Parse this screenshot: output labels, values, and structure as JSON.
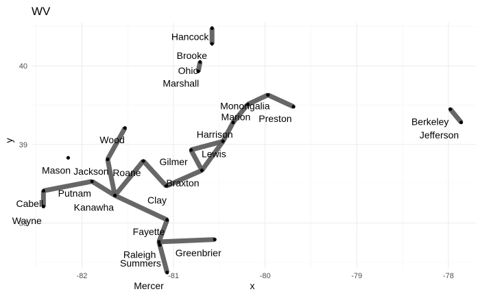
{
  "chart_data": {
    "type": "network",
    "title": "WV",
    "xlabel": "x",
    "ylabel": "y",
    "xlim": [
      -82.55,
      -77.7
    ],
    "ylim": [
      37.42,
      40.55
    ],
    "x_ticks": [
      -82,
      -81,
      -80,
      -79,
      -78
    ],
    "y_ticks": [
      38,
      39,
      40
    ],
    "grid": true,
    "nodes": [
      {
        "name": "Hancock",
        "x": -80.58,
        "y": 40.48
      },
      {
        "name": "Brooke",
        "x": -80.71,
        "y": 40.05
      },
      {
        "name": "Ohio",
        "x": -80.73,
        "y": 39.93
      },
      {
        "name": "Marshall",
        "x": -80.58,
        "y": 40.28
      },
      {
        "name": "Monongalia",
        "x": -79.97,
        "y": 39.63
      },
      {
        "name": "Marion",
        "x": -80.19,
        "y": 39.51
      },
      {
        "name": "Preston",
        "x": -79.69,
        "y": 39.48
      },
      {
        "name": "Harrison",
        "x": -80.35,
        "y": 39.28
      },
      {
        "name": "Lewis",
        "x": -80.46,
        "y": 39.04
      },
      {
        "name": "Gilmer",
        "x": -80.81,
        "y": 38.93
      },
      {
        "name": "Braxton",
        "x": -80.69,
        "y": 38.67
      },
      {
        "name": "Clay",
        "x": -81.08,
        "y": 38.47
      },
      {
        "name": "Roane",
        "x": -81.33,
        "y": 38.79
      },
      {
        "name": "Wood",
        "x": -81.53,
        "y": 39.21
      },
      {
        "name": "Jackson",
        "x": -81.72,
        "y": 38.81
      },
      {
        "name": "Kanawha",
        "x": -81.64,
        "y": 38.35
      },
      {
        "name": "Mason",
        "x": -82.15,
        "y": 38.83
      },
      {
        "name": "Putnam",
        "x": -81.89,
        "y": 38.53
      },
      {
        "name": "Cabell",
        "x": -82.42,
        "y": 38.41
      },
      {
        "name": "Wayne",
        "x": -82.42,
        "y": 38.21
      },
      {
        "name": "Fayette",
        "x": -81.07,
        "y": 38.04
      },
      {
        "name": "Raleigh",
        "x": -81.16,
        "y": 37.76
      },
      {
        "name": "Summers",
        "x": -81.15,
        "y": 37.72
      },
      {
        "name": "Greenbrier",
        "x": -80.55,
        "y": 37.79
      },
      {
        "name": "Mercer",
        "x": -81.07,
        "y": 37.37
      },
      {
        "name": "Berkeley",
        "x": -77.98,
        "y": 39.45
      },
      {
        "name": "Jefferson",
        "x": -77.86,
        "y": 39.28
      }
    ],
    "edges": [
      [
        "Hancock",
        "Marshall"
      ],
      [
        "Brooke",
        "Ohio"
      ],
      [
        "Preston",
        "Monongalia"
      ],
      [
        "Monongalia",
        "Marion"
      ],
      [
        "Marion",
        "Harrison"
      ],
      [
        "Harrison",
        "Lewis"
      ],
      [
        "Lewis",
        "Braxton"
      ],
      [
        "Gilmer",
        "Lewis"
      ],
      [
        "Gilmer",
        "Braxton"
      ],
      [
        "Braxton",
        "Clay"
      ],
      [
        "Clay",
        "Roane"
      ],
      [
        "Roane",
        "Kanawha"
      ],
      [
        "Wood",
        "Jackson"
      ],
      [
        "Jackson",
        "Kanawha"
      ],
      [
        "Kanawha",
        "Putnam"
      ],
      [
        "Putnam",
        "Cabell"
      ],
      [
        "Cabell",
        "Wayne"
      ],
      [
        "Kanawha",
        "Fayette"
      ],
      [
        "Fayette",
        "Raleigh"
      ],
      [
        "Raleigh",
        "Summers"
      ],
      [
        "Summers",
        "Mercer"
      ],
      [
        "Raleigh",
        "Greenbrier"
      ],
      [
        "Berkeley",
        "Jefferson"
      ]
    ],
    "labels": [
      {
        "text": "Hancock",
        "x": -80.82,
        "y": 40.37
      },
      {
        "text": "Brooke",
        "x": -80.8,
        "y": 40.13
      },
      {
        "text": "Ohio",
        "x": -80.84,
        "y": 39.94
      },
      {
        "text": "Marshall",
        "x": -80.92,
        "y": 39.78
      },
      {
        "text": "Monongalia",
        "x": -80.22,
        "y": 39.49
      },
      {
        "text": "Marion",
        "x": -80.32,
        "y": 39.35
      },
      {
        "text": "Preston",
        "x": -79.89,
        "y": 39.33
      },
      {
        "text": "Harrison",
        "x": -80.55,
        "y": 39.13
      },
      {
        "text": "Lewis",
        "x": -80.56,
        "y": 38.88
      },
      {
        "text": "Gilmer",
        "x": -81.0,
        "y": 38.78
      },
      {
        "text": "Braxton",
        "x": -80.9,
        "y": 38.51
      },
      {
        "text": "Clay",
        "x": -81.18,
        "y": 38.29
      },
      {
        "text": "Roane",
        "x": -81.51,
        "y": 38.64
      },
      {
        "text": "Wood",
        "x": -81.67,
        "y": 39.06
      },
      {
        "text": "Jackson",
        "x": -81.9,
        "y": 38.66
      },
      {
        "text": "Kanawha",
        "x": -81.87,
        "y": 38.2
      },
      {
        "text": "Mason",
        "x": -82.28,
        "y": 38.67
      },
      {
        "text": "Putnam",
        "x": -82.08,
        "y": 38.38
      },
      {
        "text": "Cabell",
        "x": -82.57,
        "y": 38.25
      },
      {
        "text": "Wayne",
        "x": -82.6,
        "y": 38.03
      },
      {
        "text": "Fayette",
        "x": -81.27,
        "y": 37.89
      },
      {
        "text": "Raleigh",
        "x": -81.37,
        "y": 37.6
      },
      {
        "text": "Summers",
        "x": -81.36,
        "y": 37.49
      },
      {
        "text": "Greenbrier",
        "x": -80.73,
        "y": 37.62
      },
      {
        "text": "Mercer",
        "x": -81.27,
        "y": 37.2
      },
      {
        "text": "Berkeley",
        "x": -78.2,
        "y": 39.29
      },
      {
        "text": "Jefferson",
        "x": -78.1,
        "y": 39.12
      }
    ]
  }
}
